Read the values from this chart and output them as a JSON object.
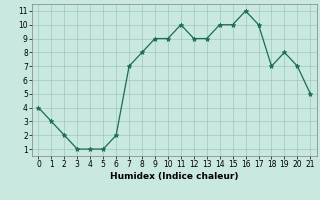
{
  "x": [
    0,
    1,
    2,
    3,
    4,
    5,
    6,
    7,
    8,
    9,
    10,
    11,
    12,
    13,
    14,
    15,
    16,
    17,
    18,
    19,
    20,
    21
  ],
  "y": [
    4,
    3,
    2,
    1,
    1,
    1,
    2,
    7,
    8,
    9,
    9,
    10,
    9,
    9,
    10,
    10,
    11,
    10,
    7,
    8,
    7,
    5
  ],
  "line_color": "#1a6b5a",
  "marker": "*",
  "marker_color": "#1a6b5a",
  "bg_color": "#c8e8e0",
  "grid_color": "#a0c8c0",
  "xlabel": "Humidex (Indice chaleur)",
  "xlim": [
    -0.5,
    21.5
  ],
  "ylim": [
    0.5,
    11.5
  ],
  "yticks": [
    1,
    2,
    3,
    4,
    5,
    6,
    7,
    8,
    9,
    10,
    11
  ],
  "xticks": [
    0,
    1,
    2,
    3,
    4,
    5,
    6,
    7,
    8,
    9,
    10,
    11,
    12,
    13,
    14,
    15,
    16,
    17,
    18,
    19,
    20,
    21
  ],
  "label_fontsize": 6.5,
  "tick_fontsize": 5.5,
  "linewidth": 0.9,
  "markersize": 3.5
}
